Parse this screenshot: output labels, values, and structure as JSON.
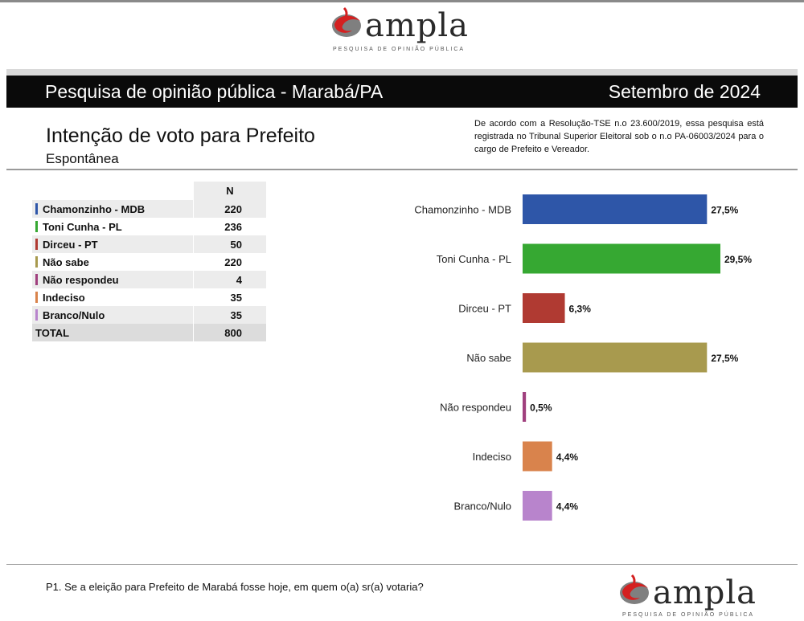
{
  "logo": {
    "word": "ampla",
    "tagline": "PESQUISA DE OPINIÃO PÚBLICA"
  },
  "header": {
    "left": "Pesquisa de opinião pública - Marabá/PA",
    "right": "Setembro de 2024"
  },
  "title": "Intenção de voto para Prefeito",
  "subtitle": "Espontânea",
  "notice": "De acordo com a Resolução-TSE n.o 23.600/2019, essa pesquisa está registrada no Tribunal Superior Eleitoral sob o n.o PA-06003/2024 para o cargo de Prefeito e Vereador.",
  "table": {
    "header_n": "N",
    "rows": [
      {
        "name": "Chamonzinho - MDB",
        "n": "220",
        "color": "#2e56a8"
      },
      {
        "name": "Toni Cunha - PL",
        "n": "236",
        "color": "#36a832"
      },
      {
        "name": "Dirceu - PT",
        "n": "50",
        "color": "#b03a32"
      },
      {
        "name": "Não sabe",
        "n": "220",
        "color": "#a89a4e"
      },
      {
        "name": "Não respondeu",
        "n": "4",
        "color": "#a0407e"
      },
      {
        "name": "Indeciso",
        "n": "35",
        "color": "#d9834c"
      },
      {
        "name": "Branco/Nulo",
        "n": "35",
        "color": "#b884cc"
      }
    ],
    "total_label": "TOTAL",
    "total_n": "800"
  },
  "chart_data": {
    "type": "bar",
    "orientation": "horizontal",
    "categories": [
      "Chamonzinho - MDB",
      "Toni Cunha - PL",
      "Dirceu - PT",
      "Não sabe",
      "Não respondeu",
      "Indeciso",
      "Branco/Nulo"
    ],
    "values": [
      27.5,
      29.5,
      6.3,
      27.5,
      0.5,
      4.4,
      4.4
    ],
    "labels": [
      "27,5%",
      "29,5%",
      "6,3%",
      "27,5%",
      "0,5%",
      "4,4%",
      "4,4%"
    ],
    "colors": [
      "#2e56a8",
      "#36a832",
      "#b03a32",
      "#a89a4e",
      "#a0407e",
      "#d9834c",
      "#b884cc"
    ],
    "xlim": [
      0,
      29.5
    ],
    "grid": false,
    "legend": "none"
  },
  "footnote": "P1. Se a eleição para Prefeito de Marabá fosse hoje, em quem o(a) sr(a) votaria?"
}
